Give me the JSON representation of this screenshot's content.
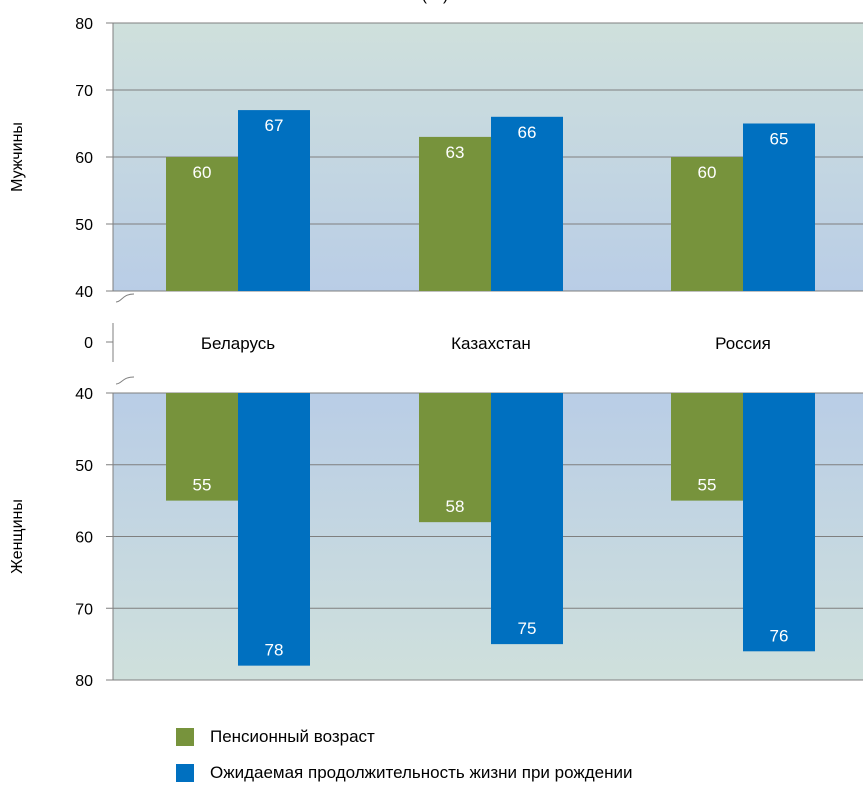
{
  "chart_data": {
    "type": "bar",
    "title_partial": "(…)",
    "categories": [
      "Беларусь",
      "Казахстан",
      "Россия"
    ],
    "series": [
      {
        "name": "Пенсионный возраст",
        "color": "#77933c"
      },
      {
        "name": "Ожидаемая продолжительность жизни при рождении",
        "color": "#0070c0"
      }
    ],
    "panels": [
      {
        "ylabel": "Мужчины",
        "ylim": [
          40,
          80
        ],
        "direction": "up",
        "yticks": [
          40,
          50,
          60,
          70,
          80
        ],
        "values": [
          [
            60,
            63,
            60
          ],
          [
            67,
            66,
            65
          ]
        ],
        "labels": [
          [
            "60",
            "63",
            "60"
          ],
          [
            "67",
            "66",
            "65"
          ]
        ]
      },
      {
        "ylabel": "Женщины",
        "ylim": [
          40,
          80
        ],
        "direction": "down",
        "yticks": [
          40,
          50,
          60,
          70,
          80
        ],
        "values": [
          [
            55,
            58,
            55
          ],
          [
            78,
            75,
            76
          ]
        ],
        "labels": [
          [
            "55",
            "58",
            "55"
          ],
          [
            "78",
            "75",
            "76"
          ]
        ]
      }
    ],
    "axis_break_label": "0",
    "grid": true,
    "legend_position": "bottom-left"
  }
}
